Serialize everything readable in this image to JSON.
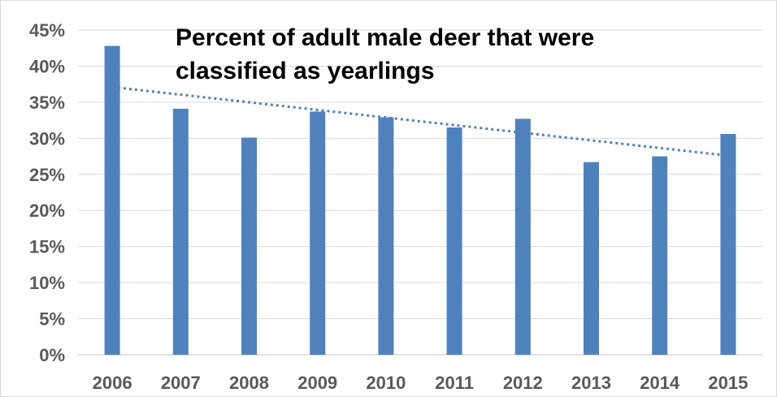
{
  "chart_data": {
    "type": "bar",
    "title_lines": [
      "Percent of adult male deer that were",
      "classified as yearlings"
    ],
    "categories": [
      "2006",
      "2007",
      "2008",
      "2009",
      "2010",
      "2011",
      "2012",
      "2013",
      "2014",
      "2015"
    ],
    "values": [
      42.8,
      34.1,
      30.1,
      33.7,
      32.9,
      31.5,
      32.7,
      26.7,
      27.5,
      30.6
    ],
    "ylim": [
      0,
      45
    ],
    "yticks": [
      "0%",
      "5%",
      "10%",
      "15%",
      "20%",
      "25%",
      "30%",
      "35%",
      "40%",
      "45%"
    ],
    "ytick_values": [
      0,
      5,
      10,
      15,
      20,
      25,
      30,
      35,
      40,
      45
    ],
    "trendline": {
      "type": "linear",
      "start": 37.1,
      "end": 27.6
    },
    "grid": true,
    "legend": "none",
    "colors": {
      "bar": "#4f81bd",
      "trend": "#4f81bd"
    }
  }
}
